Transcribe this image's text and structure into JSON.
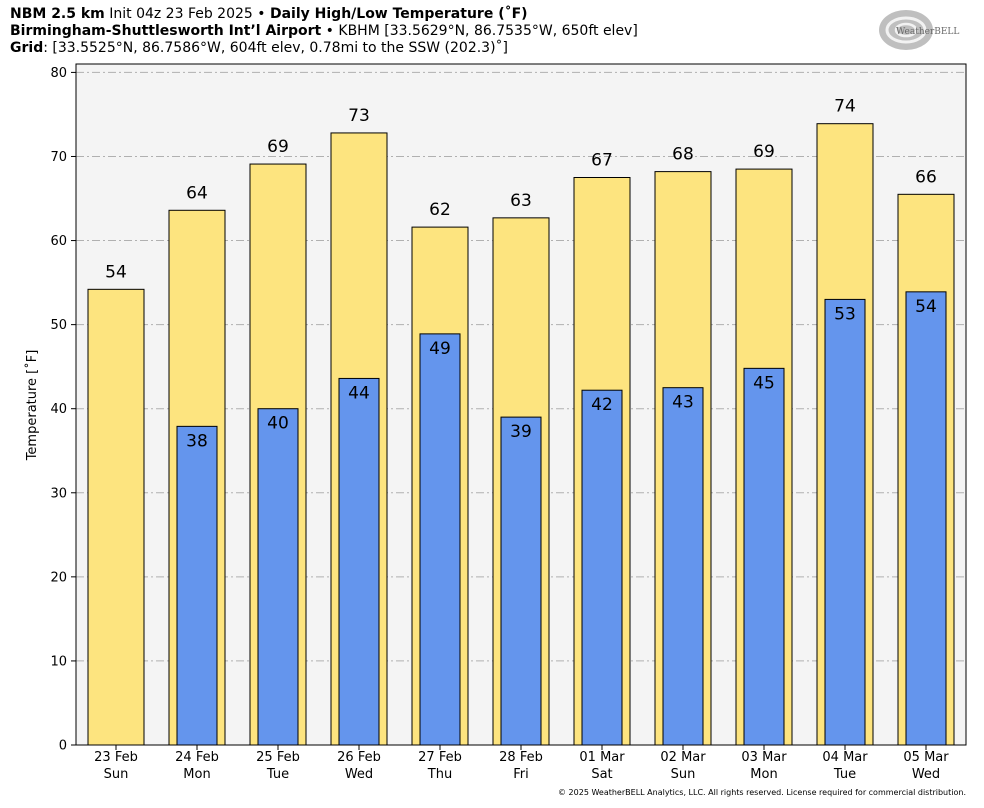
{
  "header": {
    "model": "NBM 2.5 km",
    "init": "Init 04z 23 Feb 2025",
    "bullet": "•",
    "product": "Daily High/Low Temperature (˚F)",
    "station_name": "Birmingham-Shuttlesworth Int’l Airport",
    "station_info": "KBHM [33.5629°N, 86.7535°W, 650ft elev]",
    "grid_label": "Grid",
    "grid_info": ": [33.5525°N, 86.7586°W, 604ft elev, 0.78mi to the SSW (202.3)˚]"
  },
  "logo": {
    "text": "WeatherBELL"
  },
  "copyright": "© 2025 WeatherBELL Analytics, LLC. All rights reserved. License required for commercial distribution.",
  "colors": {
    "high": "#fde47f",
    "low": "#6495ed",
    "plot_bg": "#f4f4f4",
    "grid": "#b0b0b0"
  },
  "chart_data": {
    "type": "bar",
    "ylabel": "Temperature [˚F]",
    "ylim": [
      0,
      81
    ],
    "yticks": [
      0,
      10,
      20,
      30,
      40,
      50,
      60,
      70,
      80
    ],
    "grid": true,
    "categories": [
      {
        "date": "23 Feb",
        "day": "Sun"
      },
      {
        "date": "24 Feb",
        "day": "Mon"
      },
      {
        "date": "25 Feb",
        "day": "Tue"
      },
      {
        "date": "26 Feb",
        "day": "Wed"
      },
      {
        "date": "27 Feb",
        "day": "Thu"
      },
      {
        "date": "28 Feb",
        "day": "Fri"
      },
      {
        "date": "01 Mar",
        "day": "Sat"
      },
      {
        "date": "02 Mar",
        "day": "Sun"
      },
      {
        "date": "03 Mar",
        "day": "Mon"
      },
      {
        "date": "04 Mar",
        "day": "Tue"
      },
      {
        "date": "05 Mar",
        "day": "Wed"
      }
    ],
    "series": [
      {
        "name": "High",
        "values": [
          54.2,
          63.6,
          69.1,
          72.8,
          61.6,
          62.7,
          67.5,
          68.2,
          68.5,
          73.9,
          65.5
        ],
        "labels": [
          "54",
          "64",
          "69",
          "73",
          "62",
          "63",
          "67",
          "68",
          "69",
          "74",
          "66"
        ]
      },
      {
        "name": "Low",
        "values": [
          null,
          37.9,
          40.0,
          43.6,
          48.9,
          39.0,
          42.2,
          42.5,
          44.8,
          53.0,
          53.9
        ],
        "labels": [
          "",
          "38",
          "40",
          "44",
          "49",
          "39",
          "42",
          "43",
          "45",
          "53",
          "54"
        ]
      }
    ]
  }
}
